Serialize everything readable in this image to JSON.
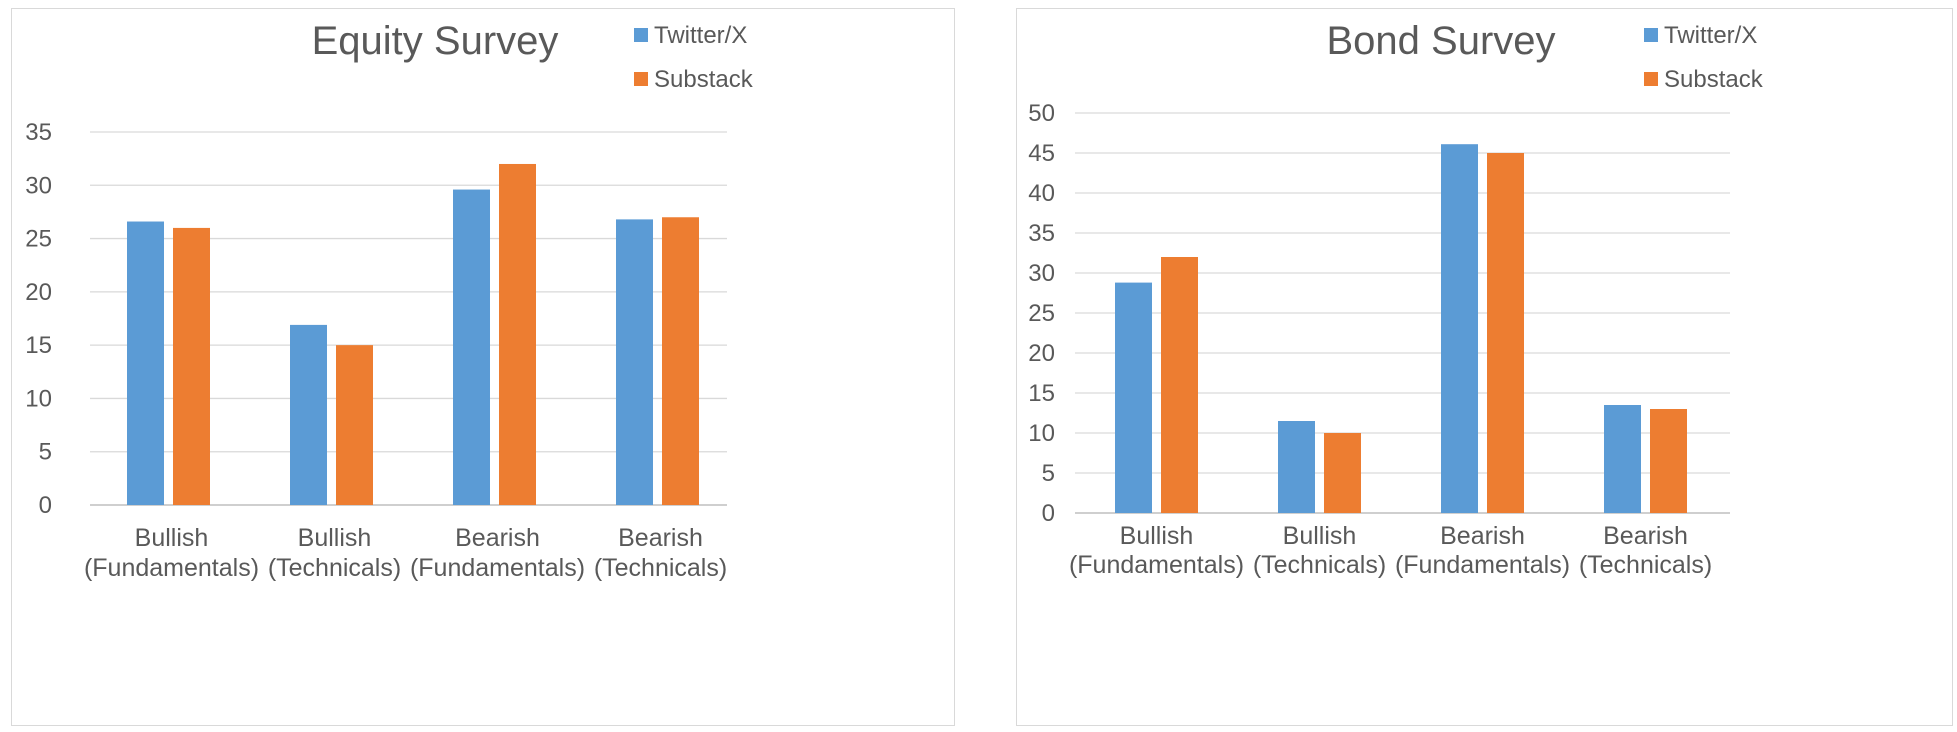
{
  "colors": {
    "twitter": "#5b9bd5",
    "substack": "#ed7d31"
  },
  "chart_data": [
    {
      "type": "bar",
      "title": "Equity Survey",
      "categories": [
        [
          "Bullish",
          "(Fundamentals)"
        ],
        [
          "Bullish",
          "(Technicals)"
        ],
        [
          "Bearish",
          "(Fundamentals)"
        ],
        [
          "Bearish",
          "(Technicals)"
        ]
      ],
      "series": [
        {
          "name": "Twitter/X",
          "color": "#5b9bd5",
          "values": [
            26.6,
            16.9,
            29.6,
            26.8
          ]
        },
        {
          "name": "Substack",
          "color": "#ed7d31",
          "values": [
            26,
            15,
            32,
            27
          ]
        }
      ],
      "ylim": [
        0,
        35
      ],
      "yticks": [
        "0",
        "5",
        "10",
        "15",
        "20",
        "25",
        "30",
        "35"
      ],
      "grid": true,
      "legend": "top-right"
    },
    {
      "type": "bar",
      "title": "Bond Survey",
      "categories": [
        [
          "Bullish",
          "(Fundamentals)"
        ],
        [
          "Bullish",
          "(Technicals)"
        ],
        [
          "Bearish",
          "(Fundamentals)"
        ],
        [
          "Bearish",
          "(Technicals)"
        ]
      ],
      "series": [
        {
          "name": "Twitter/X",
          "color": "#5b9bd5",
          "values": [
            28.8,
            11.5,
            46.1,
            13.5
          ]
        },
        {
          "name": "Substack",
          "color": "#ed7d31",
          "values": [
            32,
            10,
            45,
            13
          ]
        }
      ],
      "ylim": [
        0,
        50
      ],
      "yticks": [
        "0",
        "5",
        "10",
        "15",
        "20",
        "25",
        "30",
        "35",
        "40",
        "45",
        "50"
      ],
      "grid": true,
      "legend": "top-right"
    }
  ]
}
